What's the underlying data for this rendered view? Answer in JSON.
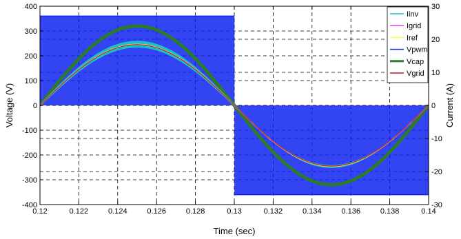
{
  "chart_data": {
    "type": "line",
    "xlabel": "Time (sec)",
    "ylabel_left": "Voltage (V)",
    "ylabel_right": "Current (A)",
    "xlim": [
      0.12,
      0.14
    ],
    "ylim_left": [
      -400,
      400
    ],
    "ylim_right": [
      -30,
      30
    ],
    "x_ticks": [
      "0.12",
      "0.122",
      "0.124",
      "0.126",
      "0.128",
      "0.13",
      "0.132",
      "0.134",
      "0.136",
      "0.138",
      "0.14"
    ],
    "y_ticks_left": [
      "-400",
      "-300",
      "-200",
      "-100",
      "0",
      "100",
      "200",
      "300",
      "400"
    ],
    "y_ticks_right": [
      "-30",
      "-20",
      "-10",
      "0",
      "10",
      "20",
      "30"
    ],
    "grid": "dashed",
    "legend_position": "top-right",
    "waveform": {
      "period_sec": 0.02,
      "phase_start_sec": 0.12,
      "vpwm_amplitude_V": 360,
      "vcap_amplitude_V": 320,
      "vgrid_amplitude_V": 245,
      "iinv_amplitude_A": 18.5,
      "iinv_ripple_A": 1.2,
      "igrid_amplitude_A": 18.5,
      "iref_amplitude_A": 18.5
    },
    "series": [
      {
        "name": "Iinv",
        "color": "#17c3c9",
        "axis": "right"
      },
      {
        "name": "Igrid",
        "color": "#e040e0",
        "axis": "right"
      },
      {
        "name": "Iref",
        "color": "#ffff40",
        "axis": "right"
      },
      {
        "name": "Vpwm",
        "color": "#0b1ff0",
        "axis": "left"
      },
      {
        "name": "Vcap",
        "color": "#2c7a2c",
        "axis": "left"
      },
      {
        "name": "Vgrid",
        "color": "#cc1515",
        "axis": "left"
      }
    ]
  }
}
